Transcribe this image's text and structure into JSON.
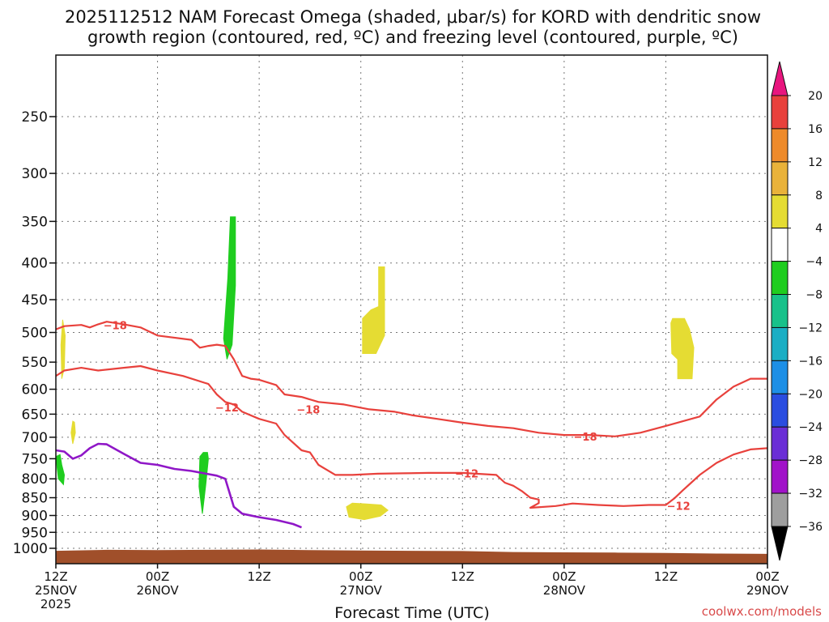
{
  "title": {
    "line1": "2025112512 NAM Forecast Omega (shaded, μbar/s) for KORD with dendritic snow",
    "line2": "growth region (contoured, red, ºC) and freezing level (contoured, purple, ºC)"
  },
  "credit": "coolwx.com/models",
  "chart_data": {
    "type": "time-height cross section",
    "xlabel": "Forecast Time (UTC)",
    "ylabel": "",
    "x_unit": "forecast hours from 2025112512",
    "x_range": [
      0,
      84
    ],
    "y_unit": "hPa",
    "y_range": [
      200,
      1030
    ],
    "y_scale": "log",
    "y_ticks": [
      250,
      300,
      350,
      400,
      450,
      500,
      550,
      600,
      650,
      700,
      750,
      800,
      850,
      900,
      950,
      1000
    ],
    "x_ticks": [
      {
        "hour": 0,
        "line1": "12Z",
        "line2": "25NOV",
        "line3": "2025"
      },
      {
        "hour": 12,
        "line1": "00Z",
        "line2": "26NOV",
        "line3": ""
      },
      {
        "hour": 24,
        "line1": "12Z",
        "line2": "",
        "line3": ""
      },
      {
        "hour": 36,
        "line1": "00Z",
        "line2": "27NOV",
        "line3": ""
      },
      {
        "hour": 48,
        "line1": "12Z",
        "line2": "",
        "line3": ""
      },
      {
        "hour": 60,
        "line1": "00Z",
        "line2": "28NOV",
        "line3": ""
      },
      {
        "hour": 72,
        "line1": "12Z",
        "line2": "",
        "line3": ""
      },
      {
        "hour": 84,
        "line1": "00Z",
        "line2": "29NOV",
        "line3": ""
      }
    ],
    "grid": true,
    "colorbar": {
      "levels": [
        "20",
        "16",
        "12",
        "8",
        "4",
        "−4",
        "−8",
        "−12",
        "−16",
        "−20",
        "−24",
        "−28",
        "−32",
        "−36"
      ],
      "colors": [
        "#e8413c",
        "#ee8a2a",
        "#e9b23a",
        "#e5dc33",
        "#ffffff",
        "#1fcd1f",
        "#18c18a",
        "#1aaec4",
        "#1d8fe6",
        "#2a4de0",
        "#6a2ed6",
        "#a112c9",
        "#9e9e9e"
      ],
      "top_arrow_color": "#e8157e",
      "bottom_arrow_color": "#000000"
    },
    "ground": {
      "color": "#a04f2a",
      "points": [
        [
          0,
          1008
        ],
        [
          6,
          1005
        ],
        [
          12,
          1006
        ],
        [
          18,
          1005
        ],
        [
          24,
          1004
        ],
        [
          30,
          1006
        ],
        [
          36,
          1007
        ],
        [
          42,
          1008
        ],
        [
          48,
          1009
        ],
        [
          54,
          1012
        ],
        [
          60,
          1013
        ],
        [
          66,
          1014
        ],
        [
          72,
          1015
        ],
        [
          78,
          1017
        ],
        [
          84,
          1018
        ]
      ]
    },
    "dgz_contours": [
      {
        "name": "-18 top",
        "color": "#e8413c",
        "points": [
          [
            0,
            495
          ],
          [
            1,
            490
          ],
          [
            3,
            488
          ],
          [
            4,
            492
          ],
          [
            5,
            487
          ],
          [
            6,
            483
          ],
          [
            8,
            487
          ],
          [
            10,
            492
          ],
          [
            12,
            505
          ],
          [
            16,
            512
          ],
          [
            17,
            525
          ],
          [
            18,
            522
          ],
          [
            19,
            520
          ],
          [
            20,
            522
          ],
          [
            21,
            545
          ],
          [
            22,
            575
          ],
          [
            23,
            580
          ],
          [
            24,
            582
          ],
          [
            26,
            592
          ],
          [
            27,
            610
          ],
          [
            29,
            615
          ],
          [
            31,
            625
          ],
          [
            34,
            630
          ],
          [
            37,
            640
          ],
          [
            40,
            645
          ],
          [
            42,
            652
          ],
          [
            45,
            660
          ],
          [
            48,
            668
          ],
          [
            51,
            675
          ],
          [
            54,
            680
          ],
          [
            57,
            690
          ],
          [
            60,
            695
          ],
          [
            63,
            695
          ],
          [
            66,
            698
          ],
          [
            69,
            690
          ],
          [
            72,
            675
          ],
          [
            76,
            655
          ],
          [
            78,
            620
          ],
          [
            80,
            595
          ],
          [
            82,
            580
          ],
          [
            84,
            580
          ]
        ]
      },
      {
        "name": "-12 top",
        "color": "#e8413c",
        "points": [
          [
            0,
            575
          ],
          [
            1,
            565
          ],
          [
            3,
            560
          ],
          [
            5,
            565
          ],
          [
            8,
            560
          ],
          [
            10,
            557
          ],
          [
            12,
            565
          ],
          [
            15,
            575
          ],
          [
            18,
            590
          ],
          [
            19,
            610
          ],
          [
            20,
            625
          ],
          [
            21,
            630
          ],
          [
            22,
            645
          ],
          [
            24,
            660
          ],
          [
            26,
            670
          ],
          [
            27,
            695
          ],
          [
            29,
            730
          ],
          [
            30,
            735
          ],
          [
            31,
            765
          ],
          [
            33,
            790
          ],
          [
            35,
            790
          ],
          [
            38,
            787
          ],
          [
            41,
            786
          ],
          [
            44,
            785
          ],
          [
            46,
            785
          ],
          [
            48,
            785
          ],
          [
            52,
            790
          ],
          [
            53,
            810
          ],
          [
            54,
            818
          ],
          [
            55,
            832
          ],
          [
            56,
            850
          ],
          [
            57,
            855
          ],
          [
            57,
            865
          ],
          [
            56,
            878
          ],
          [
            59,
            873
          ],
          [
            61,
            866
          ],
          [
            64,
            870
          ],
          [
            67,
            873
          ],
          [
            70,
            870
          ],
          [
            72,
            870
          ],
          [
            73,
            852
          ],
          [
            74,
            830
          ],
          [
            75,
            810
          ],
          [
            76,
            790
          ],
          [
            78,
            760
          ],
          [
            80,
            740
          ],
          [
            82,
            728
          ],
          [
            84,
            725
          ]
        ]
      },
      {
        "name": "-18 label",
        "label": "−18"
      },
      {
        "name": "-12 label",
        "label": "−12"
      }
    ],
    "freezing_level": {
      "color": "#8f17c7",
      "points": [
        [
          0,
          730
        ],
        [
          1,
          733
        ],
        [
          2,
          750
        ],
        [
          3,
          742
        ],
        [
          4,
          725
        ],
        [
          5,
          715
        ],
        [
          6,
          716
        ],
        [
          8,
          738
        ],
        [
          10,
          760
        ],
        [
          12,
          765
        ],
        [
          14,
          775
        ],
        [
          16,
          780
        ],
        [
          18,
          788
        ],
        [
          19,
          792
        ],
        [
          20,
          800
        ],
        [
          21,
          875
        ],
        [
          22,
          895
        ],
        [
          24,
          905
        ],
        [
          26,
          913
        ],
        [
          28,
          925
        ],
        [
          29,
          935
        ]
      ]
    },
    "omega_regions": [
      {
        "color": "#1fcd1f",
        "label": "-4 to -8",
        "polygon": [
          [
            20.6,
            345
          ],
          [
            20.3,
            420
          ],
          [
            19.8,
            510
          ],
          [
            20.2,
            545
          ],
          [
            20.8,
            520
          ],
          [
            21.2,
            430
          ],
          [
            21.2,
            345
          ]
        ]
      },
      {
        "color": "#1fcd1f",
        "label": "-4 to -8",
        "polygon": [
          [
            0.0,
            745
          ],
          [
            0.3,
            800
          ],
          [
            0.9,
            815
          ],
          [
            1.0,
            790
          ],
          [
            0.7,
            765
          ],
          [
            0.5,
            740
          ]
        ]
      },
      {
        "color": "#1fcd1f",
        "label": "-4 to -8",
        "polygon": [
          [
            17.0,
            745
          ],
          [
            16.9,
            820
          ],
          [
            17.3,
            895
          ],
          [
            17.7,
            815
          ],
          [
            18.0,
            750
          ],
          [
            17.9,
            735
          ],
          [
            17.4,
            735
          ]
        ]
      },
      {
        "color": "#e5dc33",
        "label": "4 to 8",
        "polygon": [
          [
            0.8,
            480
          ],
          [
            0.6,
            520
          ],
          [
            0.7,
            580
          ],
          [
            1.0,
            560
          ],
          [
            1.1,
            505
          ]
        ]
      },
      {
        "color": "#e5dc33",
        "label": "4 to 8",
        "polygon": [
          [
            2.0,
            665
          ],
          [
            1.8,
            690
          ],
          [
            2.0,
            715
          ],
          [
            2.3,
            690
          ],
          [
            2.2,
            667
          ]
        ]
      },
      {
        "color": "#e5dc33",
        "label": "4 to 8",
        "polygon": [
          [
            38.1,
            405
          ],
          [
            38.1,
            460
          ],
          [
            37.2,
            465
          ],
          [
            36.2,
            478
          ],
          [
            36.2,
            535
          ],
          [
            37.8,
            535
          ],
          [
            38.8,
            505
          ],
          [
            38.8,
            405
          ]
        ]
      },
      {
        "color": "#e5dc33",
        "label": "4 to 8",
        "polygon": [
          [
            35.0,
            865
          ],
          [
            34.3,
            875
          ],
          [
            34.6,
            905
          ],
          [
            36.4,
            912
          ],
          [
            38.3,
            902
          ],
          [
            39.2,
            885
          ],
          [
            38.4,
            870
          ],
          [
            36.5,
            867
          ]
        ]
      },
      {
        "color": "#e5dc33",
        "label": "4 to 8",
        "polygon": [
          [
            72.6,
            485
          ],
          [
            72.7,
            535
          ],
          [
            73.4,
            545
          ],
          [
            73.4,
            580
          ],
          [
            75.1,
            580
          ],
          [
            75.3,
            525
          ],
          [
            74.8,
            495
          ],
          [
            74.2,
            478
          ],
          [
            72.8,
            478
          ]
        ]
      }
    ]
  }
}
